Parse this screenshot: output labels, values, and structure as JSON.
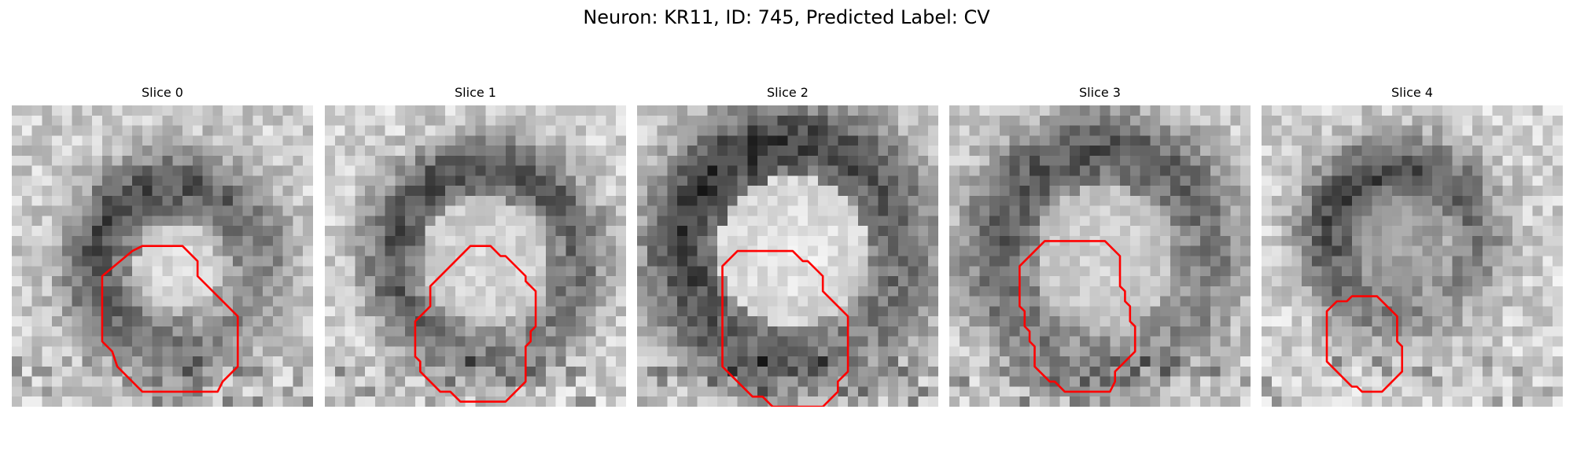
{
  "figure": {
    "title": "Neuron: KR11, ID: 745, Predicted Label: CV",
    "contour_color": "#ff0000",
    "slices": [
      {
        "label": "Slice 0"
      },
      {
        "label": "Slice 1"
      },
      {
        "label": "Slice 2"
      },
      {
        "label": "Slice 3"
      },
      {
        "label": "Slice 4"
      }
    ]
  }
}
